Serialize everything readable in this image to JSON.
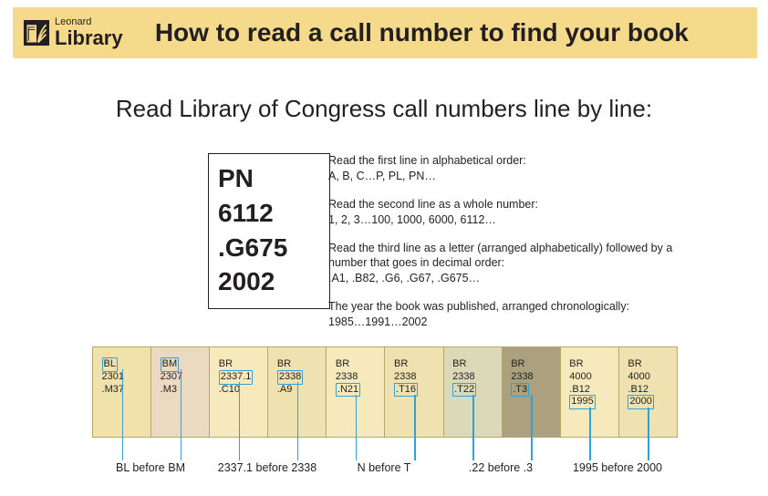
{
  "colors": {
    "header_bg": "#f6da8c",
    "text": "#231f20",
    "highlight": "#2fa3d7",
    "shelf_border": "#b7a86a",
    "book_bg": [
      "#f1e2ac",
      "#ecd9c2",
      "#f6eabd",
      "#f0e1b0",
      "#f6eabd",
      "#f0e1b0",
      "#dcd9b8",
      "#aca17e",
      "#f6eabd",
      "#f0e1b0"
    ]
  },
  "logo": {
    "small": "Leonard",
    "big": "Library"
  },
  "title": "How to read a call number to find your book",
  "subtitle": "Read Library of Congress call numbers line by line:",
  "example": [
    "PN",
    "6112",
    ".G675",
    "2002"
  ],
  "explain": [
    {
      "head": "Read the first line in alphabetical order:",
      "body": "A, B, C…P, PL, PN…"
    },
    {
      "head": "Read the second line as a whole number:",
      "body": "1, 2, 3…100, 1000, 6000, 6112…"
    },
    {
      "head": "Read the third line as a letter (arranged alphabetically) followed by a number that goes in decimal order:",
      "body": ".A1, .B82, .G6, .G67, .G675…"
    },
    {
      "head": "The year the book was published, arranged chronologically:",
      "body": "1985…1991…2002"
    }
  ],
  "books": [
    {
      "lines": [
        "BL",
        "2301",
        ".M37",
        ""
      ],
      "hl": 0
    },
    {
      "lines": [
        "BM",
        "2307",
        ".M3",
        ""
      ],
      "hl": 0
    },
    {
      "lines": [
        "BR",
        "2337.1",
        ".C10",
        ""
      ],
      "hl": 1
    },
    {
      "lines": [
        "BR",
        "2338",
        ".A9",
        ""
      ],
      "hl": 1
    },
    {
      "lines": [
        "BR",
        "2338",
        ".N21",
        ""
      ],
      "hl": 2
    },
    {
      "lines": [
        "BR",
        "2338",
        ".T16",
        ""
      ],
      "hl": 2
    },
    {
      "lines": [
        "BR",
        "2338",
        ".T22",
        ""
      ],
      "hl": 2
    },
    {
      "lines": [
        "BR",
        "2338",
        ".T3",
        ""
      ],
      "hl": 2
    },
    {
      "lines": [
        "BR",
        "4000",
        ".B12",
        "1995"
      ],
      "hl": 3
    },
    {
      "lines": [
        "BR",
        "4000",
        ".B12",
        "2000"
      ],
      "hl": 3
    }
  ],
  "captions": [
    "BL before BM",
    "2337.1 before 2338",
    "N before T",
    ".22 before .3",
    "1995 before 2000"
  ]
}
